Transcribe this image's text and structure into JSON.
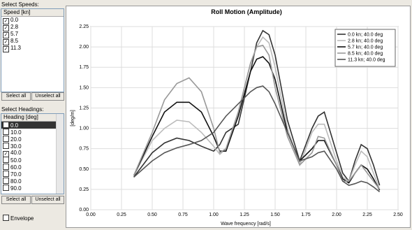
{
  "speeds": {
    "label": "Select Speeds:",
    "header": "Speed [kn]",
    "items": [
      {
        "label": "0.0",
        "checked": true
      },
      {
        "label": "2.8",
        "checked": true
      },
      {
        "label": "5.7",
        "checked": true
      },
      {
        "label": "8.5",
        "checked": true
      },
      {
        "label": "11.3",
        "checked": true
      }
    ],
    "select_all": "Select all",
    "unselect_all": "Unselect all"
  },
  "headings": {
    "label": "Select Headings:",
    "header": "Heading [deg]",
    "items": [
      {
        "label": "0.0",
        "checked": false,
        "selected": true
      },
      {
        "label": "10.0",
        "checked": false
      },
      {
        "label": "20.0",
        "checked": false
      },
      {
        "label": "30.0",
        "checked": false
      },
      {
        "label": "40.0",
        "checked": true
      },
      {
        "label": "50.0",
        "checked": false
      },
      {
        "label": "60.0",
        "checked": false
      },
      {
        "label": "70.0",
        "checked": false
      },
      {
        "label": "80.0",
        "checked": false
      },
      {
        "label": "90.0",
        "checked": false
      }
    ],
    "select_all": "Select all",
    "unselect_all": "Unselect all"
  },
  "envelope": {
    "label": "Envelope",
    "checked": false
  },
  "chart_data": {
    "type": "line",
    "title": "Roll Motion (Amplitude)",
    "x_label": "Wave frequency [rad/s]",
    "y_label": "[deg/m]",
    "xlim": [
      0,
      2.5
    ],
    "ylim": [
      0,
      2.25
    ],
    "xticks": [
      {
        "value": 0,
        "label": "0.00"
      },
      {
        "value": 0.25,
        "label": "0.25"
      },
      {
        "value": 0.5,
        "label": "0.50"
      },
      {
        "value": 0.75,
        "label": "0.75"
      },
      {
        "value": 1,
        "label": "1.00"
      },
      {
        "value": 1.25,
        "label": "1.25"
      },
      {
        "value": 1.5,
        "label": "1.50"
      },
      {
        "value": 1.75,
        "label": "1.75"
      },
      {
        "value": 2,
        "label": "2.00"
      },
      {
        "value": 2.25,
        "label": "2.25"
      },
      {
        "value": 2.5,
        "label": "2.50"
      }
    ],
    "yticks": [
      {
        "value": 0,
        "label": "0.00"
      },
      {
        "value": 0.25,
        "label": "0.25"
      },
      {
        "value": 0.5,
        "label": "0.50"
      },
      {
        "value": 0.75,
        "label": "0.75"
      },
      {
        "value": 1,
        "label": "1.00"
      },
      {
        "value": 1.25,
        "label": "1.25"
      },
      {
        "value": 1.5,
        "label": "1.50"
      },
      {
        "value": 1.75,
        "label": "1.75"
      },
      {
        "value": 2,
        "label": "2.00"
      },
      {
        "value": 2.25,
        "label": "2.25"
      }
    ],
    "grid": true,
    "legend": "top-right",
    "x": [
      0.35,
      0.5,
      0.6,
      0.7,
      0.8,
      0.9,
      1.0,
      1.05,
      1.1,
      1.2,
      1.3,
      1.35,
      1.4,
      1.45,
      1.5,
      1.6,
      1.7,
      1.8,
      1.85,
      1.9,
      2.0,
      2.05,
      2.1,
      2.15,
      2.2,
      2.25,
      2.3,
      2.35
    ],
    "series": [
      {
        "name": "0.0 kn; 40.0 deg",
        "color": "#333333",
        "values": [
          0.4,
          0.7,
          0.82,
          0.88,
          0.85,
          0.78,
          0.72,
          0.8,
          0.95,
          1.05,
          1.7,
          2.05,
          2.2,
          2.15,
          1.9,
          1.1,
          0.6,
          1.0,
          1.15,
          1.2,
          0.7,
          0.45,
          0.35,
          0.6,
          0.8,
          0.75,
          0.55,
          0.3
        ]
      },
      {
        "name": "2.8 kn; 40.0 deg",
        "color": "#bbbbbb",
        "values": [
          0.42,
          0.85,
          1.0,
          1.1,
          1.08,
          0.95,
          0.78,
          0.68,
          0.75,
          1.2,
          1.8,
          2.0,
          2.12,
          2.05,
          1.75,
          1.0,
          0.55,
          0.95,
          1.05,
          1.05,
          0.6,
          0.4,
          0.35,
          0.55,
          0.72,
          0.65,
          0.45,
          0.25
        ]
      },
      {
        "name": "5.7 kn; 40.0 deg",
        "color": "#111111",
        "values": [
          0.42,
          0.9,
          1.2,
          1.32,
          1.32,
          1.2,
          0.9,
          0.72,
          0.72,
          1.15,
          1.7,
          1.85,
          1.88,
          1.8,
          1.6,
          0.95,
          0.6,
          0.75,
          0.85,
          0.85,
          0.55,
          0.38,
          0.33,
          0.45,
          0.55,
          0.5,
          0.38,
          0.24
        ]
      },
      {
        "name": "8.5 kn; 40.0 deg",
        "color": "#999999",
        "values": [
          0.42,
          0.95,
          1.35,
          1.55,
          1.62,
          1.45,
          1.0,
          0.7,
          0.75,
          1.2,
          1.8,
          2.0,
          2.02,
          1.9,
          1.5,
          0.9,
          0.55,
          0.7,
          0.9,
          0.88,
          0.55,
          0.35,
          0.35,
          0.45,
          0.55,
          0.45,
          0.35,
          0.25
        ]
      },
      {
        "name": "11.3 kn; 40.0 deg",
        "color": "#555555",
        "values": [
          0.4,
          0.6,
          0.7,
          0.76,
          0.8,
          0.85,
          0.95,
          1.05,
          1.15,
          1.3,
          1.45,
          1.5,
          1.52,
          1.45,
          1.3,
          0.95,
          0.6,
          0.65,
          0.7,
          0.72,
          0.5,
          0.35,
          0.3,
          0.32,
          0.35,
          0.33,
          0.28,
          0.22
        ]
      }
    ]
  }
}
